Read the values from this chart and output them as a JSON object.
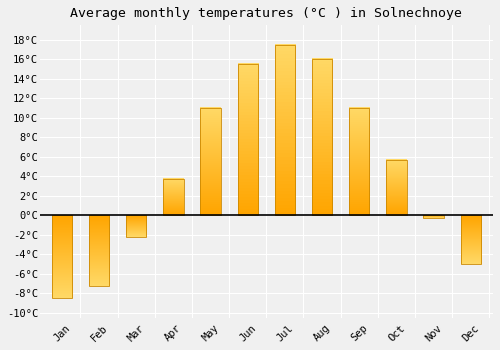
{
  "title": "Average monthly temperatures (°C ) in Solnechnoye",
  "months": [
    "Jan",
    "Feb",
    "Mar",
    "Apr",
    "May",
    "Jun",
    "Jul",
    "Aug",
    "Sep",
    "Oct",
    "Nov",
    "Dec"
  ],
  "values": [
    -8.5,
    -7.2,
    -2.2,
    3.7,
    11.0,
    15.5,
    17.5,
    16.0,
    11.0,
    5.7,
    -0.3,
    -5.0
  ],
  "bar_color_top": "#FFD966",
  "bar_color_bottom": "#FFA500",
  "bar_edge_color": "#CC8800",
  "ylim": [
    -10.5,
    19.5
  ],
  "ytick_min": -10,
  "ytick_max": 18,
  "ytick_step": 2,
  "background_color": "#f0f0f0",
  "plot_bg_color": "#f0f0f0",
  "grid_color": "#ffffff",
  "title_fontsize": 9.5,
  "tick_fontsize": 7.5,
  "zero_line_color": "#000000",
  "bar_width": 0.55
}
